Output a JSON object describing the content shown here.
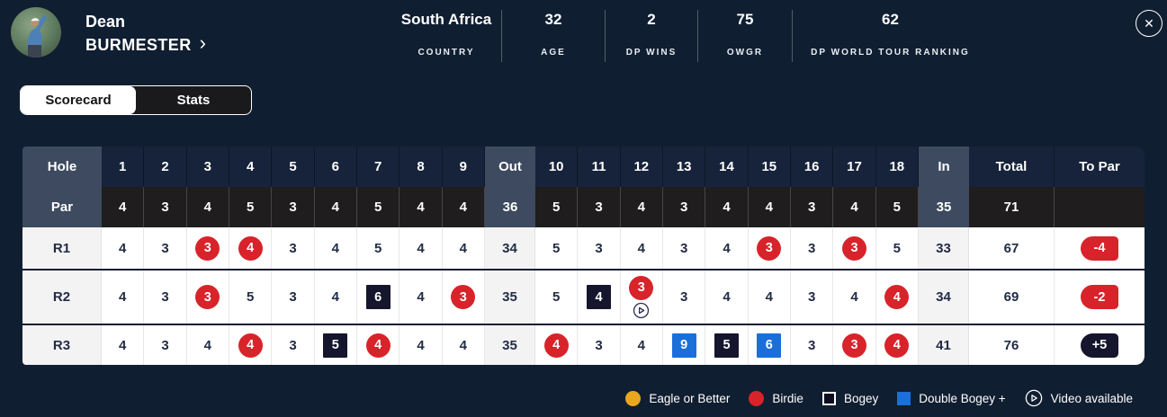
{
  "colors": {
    "page_bg": "#101e31",
    "header_cell": "#16233a",
    "label_cell": "#3d4a5f",
    "par_cell": "#201d1e",
    "light_cell": "#f3f3f4",
    "birdie_red": "#d8232a",
    "bogey_dark": "#15152d",
    "double_blue": "#1b6fd8",
    "eagle_gold": "#e9a71f"
  },
  "player": {
    "first_name": "Dean",
    "last_name": "BURMESTER",
    "chevron": "›",
    "stats": [
      {
        "value": "South Africa",
        "label": "COUNTRY"
      },
      {
        "value": "32",
        "label": "AGE"
      },
      {
        "value": "2",
        "label": "DP WINS"
      },
      {
        "value": "75",
        "label": "OWGR"
      },
      {
        "value": "62",
        "label": "DP WORLD TOUR RANKING"
      }
    ]
  },
  "icons": {
    "close": "✕"
  },
  "tabs": [
    {
      "label": "Scorecard",
      "active": true
    },
    {
      "label": "Stats",
      "active": false
    }
  ],
  "scorecard": {
    "header": {
      "hole": "Hole",
      "front": [
        "1",
        "2",
        "3",
        "4",
        "5",
        "6",
        "7",
        "8",
        "9"
      ],
      "out": "Out",
      "back": [
        "10",
        "11",
        "12",
        "13",
        "14",
        "15",
        "16",
        "17",
        "18"
      ],
      "in": "In",
      "total": "Total",
      "to_par": "To Par"
    },
    "par": {
      "label": "Par",
      "front": [
        4,
        3,
        4,
        5,
        3,
        4,
        5,
        4,
        4
      ],
      "out": 36,
      "back": [
        5,
        3,
        4,
        3,
        4,
        4,
        3,
        4,
        5
      ],
      "in": 35,
      "total": 71,
      "to_par": ""
    },
    "rounds": [
      {
        "label": "R1",
        "front": [
          {
            "v": 4
          },
          {
            "v": 3
          },
          {
            "v": 3,
            "mark": "birdie"
          },
          {
            "v": 4,
            "mark": "birdie"
          },
          {
            "v": 3
          },
          {
            "v": 4
          },
          {
            "v": 5
          },
          {
            "v": 4
          },
          {
            "v": 4
          }
        ],
        "out": 34,
        "back": [
          {
            "v": 5
          },
          {
            "v": 3
          },
          {
            "v": 4
          },
          {
            "v": 3
          },
          {
            "v": 4
          },
          {
            "v": 3,
            "mark": "birdie"
          },
          {
            "v": 3
          },
          {
            "v": 3,
            "mark": "birdie"
          },
          {
            "v": 5
          }
        ],
        "in": 33,
        "total": 67,
        "to_par": "-4",
        "to_par_style": "red"
      },
      {
        "label": "R2",
        "front": [
          {
            "v": 4
          },
          {
            "v": 3
          },
          {
            "v": 3,
            "mark": "birdie"
          },
          {
            "v": 5
          },
          {
            "v": 3
          },
          {
            "v": 4
          },
          {
            "v": 6,
            "mark": "bogey"
          },
          {
            "v": 4
          },
          {
            "v": 3,
            "mark": "birdie"
          }
        ],
        "out": 35,
        "back": [
          {
            "v": 5
          },
          {
            "v": 4,
            "mark": "bogey"
          },
          {
            "v": 3,
            "mark": "birdie",
            "video": true
          },
          {
            "v": 3
          },
          {
            "v": 4
          },
          {
            "v": 4
          },
          {
            "v": 3
          },
          {
            "v": 4
          },
          {
            "v": 4,
            "mark": "birdie"
          }
        ],
        "in": 34,
        "total": 69,
        "to_par": "-2",
        "to_par_style": "red"
      },
      {
        "label": "R3",
        "front": [
          {
            "v": 4
          },
          {
            "v": 3
          },
          {
            "v": 4
          },
          {
            "v": 4,
            "mark": "birdie"
          },
          {
            "v": 3
          },
          {
            "v": 5,
            "mark": "bogey"
          },
          {
            "v": 4,
            "mark": "birdie"
          },
          {
            "v": 4
          },
          {
            "v": 4
          }
        ],
        "out": 35,
        "back": [
          {
            "v": 4,
            "mark": "birdie"
          },
          {
            "v": 3
          },
          {
            "v": 4
          },
          {
            "v": 9,
            "mark": "double"
          },
          {
            "v": 5,
            "mark": "bogey"
          },
          {
            "v": 6,
            "mark": "double"
          },
          {
            "v": 3
          },
          {
            "v": 3,
            "mark": "birdie"
          },
          {
            "v": 4,
            "mark": "birdie"
          }
        ],
        "in": 41,
        "total": 76,
        "to_par": "+5",
        "to_par_style": "dark"
      }
    ]
  },
  "legend": [
    {
      "label": "Eagle or Better",
      "marker": "gold-circle"
    },
    {
      "label": "Birdie",
      "marker": "red-circle"
    },
    {
      "label": "Bogey",
      "marker": "dark-square"
    },
    {
      "label": "Double Bogey +",
      "marker": "blue-square"
    },
    {
      "label": "Video available",
      "marker": "video-icon"
    }
  ]
}
